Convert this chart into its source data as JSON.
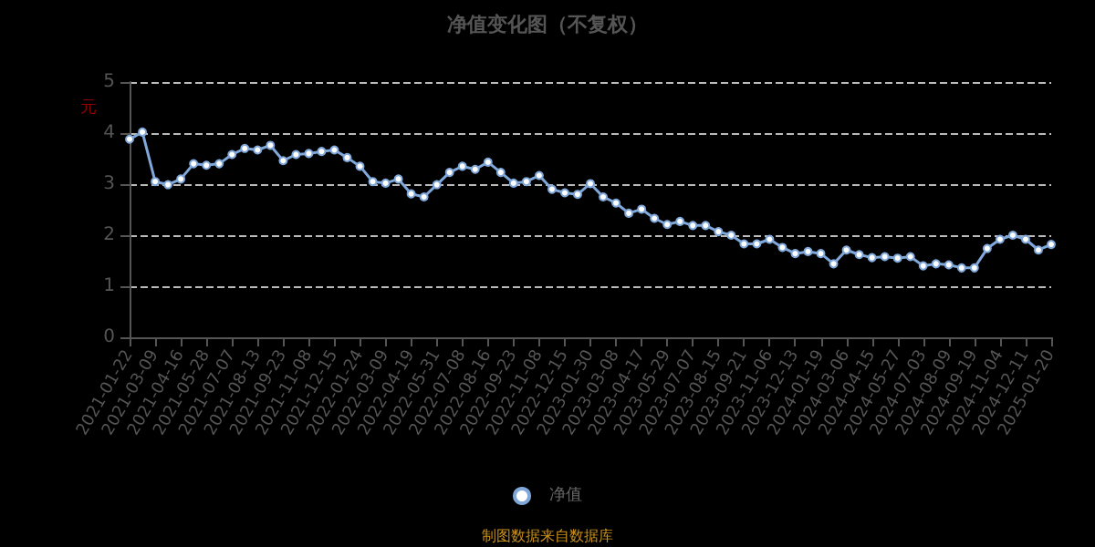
{
  "chart_data": {
    "type": "line",
    "title": "净值变化图（不复权）",
    "ylabel": "元",
    "annotations": [
      "制图数据来自数据库"
    ],
    "categories": [
      "2021-01-22",
      null,
      "2021-03-09",
      null,
      "2021-04-16",
      null,
      "2021-05-28",
      null,
      "2021-07-07",
      null,
      "2021-08-13",
      null,
      "2021-09-23",
      null,
      "2021-11-08",
      null,
      "2021-12-15",
      null,
      "2022-01-24",
      null,
      "2022-03-09",
      null,
      "2022-04-19",
      null,
      "2022-05-31",
      null,
      "2022-07-08",
      null,
      "2022-08-16",
      null,
      "2022-09-23",
      null,
      "2022-11-08",
      null,
      "2022-12-15",
      null,
      "2023-01-30",
      null,
      "2023-03-08",
      null,
      "2023-04-17",
      null,
      "2023-05-29",
      null,
      "2023-07-07",
      null,
      "2023-08-15",
      null,
      "2023-09-21",
      null,
      "2023-11-06",
      null,
      "2023-12-13",
      null,
      "2024-01-19",
      null,
      "2024-03-06",
      null,
      "2024-04-15",
      null,
      "2024-05-27",
      null,
      "2024-07-03",
      null,
      "2024-08-09",
      null,
      "2024-09-19",
      null,
      "2024-11-04",
      null,
      "2024-12-11",
      null,
      "2025-01-20"
    ],
    "series": [
      {
        "name": "净值",
        "color": "#7fa7d9",
        "values": [
          3.88,
          4.02,
          3.05,
          2.99,
          3.1,
          3.4,
          3.37,
          3.4,
          3.58,
          3.7,
          3.67,
          3.76,
          3.46,
          3.58,
          3.6,
          3.64,
          3.67,
          3.52,
          3.35,
          3.05,
          3.02,
          3.1,
          2.81,
          2.75,
          2.99,
          3.23,
          3.35,
          3.29,
          3.43,
          3.23,
          3.02,
          3.05,
          3.17,
          2.9,
          2.83,
          2.8,
          3.01,
          2.75,
          2.63,
          2.43,
          2.51,
          2.33,
          2.21,
          2.27,
          2.19,
          2.19,
          2.07,
          2.0,
          1.83,
          1.83,
          1.92,
          1.76,
          1.64,
          1.68,
          1.64,
          1.44,
          1.71,
          1.62,
          1.56,
          1.58,
          1.55,
          1.58,
          1.4,
          1.44,
          1.42,
          1.36,
          1.36,
          1.74,
          1.92,
          2.0,
          1.92,
          1.71,
          1.82
        ]
      }
    ],
    "ylim": [
      0,
      5
    ],
    "yticks": [
      0,
      1,
      2,
      3,
      4,
      5
    ],
    "grid": "y",
    "legend": "bottom",
    "marker": "circle",
    "line_style": "solid"
  }
}
